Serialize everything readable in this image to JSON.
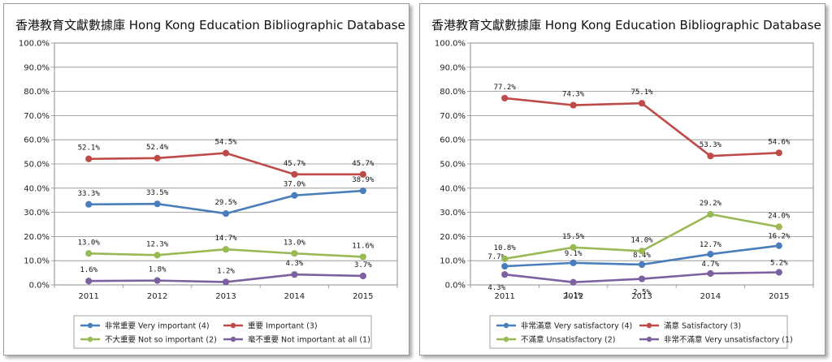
{
  "chart_data": [
    {
      "type": "line",
      "title": "香港教育文獻數據庫  Hong Kong Education Bibliographic Database",
      "x": [
        "2011",
        "2012",
        "2013",
        "2014",
        "2015"
      ],
      "ylim": [
        0,
        100
      ],
      "yticks": [
        "0.0%",
        "10.0%",
        "20.0%",
        "30.0%",
        "40.0%",
        "50.0%",
        "60.0%",
        "70.0%",
        "80.0%",
        "90.0%",
        "100.0%"
      ],
      "grid": true,
      "legend_position": "bottom",
      "series": [
        {
          "name": "非常重要 Very important (4)",
          "color": "#4a7ebb",
          "values": [
            33.3,
            33.5,
            29.5,
            37.0,
            38.9
          ],
          "labels": [
            "33.3%",
            "33.5%",
            "29.5%",
            "37.0%",
            "38.9%"
          ]
        },
        {
          "name": "重要 Important (3)",
          "color": "#be4b48",
          "values": [
            52.1,
            52.4,
            54.5,
            45.7,
            45.7
          ],
          "labels": [
            "52.1%",
            "52.4%",
            "54.5%",
            "45.7%",
            "45.7%"
          ]
        },
        {
          "name": "不大重要 Not so important (2)",
          "color": "#98b954",
          "values": [
            13.0,
            12.3,
            14.7,
            13.0,
            11.6
          ],
          "labels": [
            "13.0%",
            "12.3%",
            "14.7%",
            "13.0%",
            "11.6%"
          ]
        },
        {
          "name": "毫不重要 Not important at all (1)",
          "color": "#7d60a0",
          "values": [
            1.6,
            1.8,
            1.2,
            4.3,
            3.7
          ],
          "labels": [
            "1.6%",
            "1.8%",
            "1.2%",
            "4.3%",
            "3.7%"
          ]
        }
      ]
    },
    {
      "type": "line",
      "title": "香港教育文獻數據庫  Hong Kong Education Bibliographic Database",
      "x": [
        "2011",
        "2012",
        "2013",
        "2014",
        "2015"
      ],
      "ylim": [
        0,
        100
      ],
      "yticks": [
        "0.0%",
        "10.0%",
        "20.0%",
        "30.0%",
        "40.0%",
        "50.0%",
        "60.0%",
        "70.0%",
        "80.0%",
        "90.0%",
        "100.0%"
      ],
      "grid": true,
      "legend_position": "bottom",
      "series": [
        {
          "name": "非常滿意 Very satisfactory (4)",
          "color": "#4a7ebb",
          "values": [
            7.7,
            9.1,
            8.4,
            12.7,
            16.2
          ],
          "labels": [
            "7.7%",
            "9.1%",
            "8.4%",
            "12.7%",
            "16.2%"
          ]
        },
        {
          "name": "滿意 Satisfactory (3)",
          "color": "#be4b48",
          "values": [
            77.2,
            74.3,
            75.1,
            53.3,
            54.6
          ],
          "labels": [
            "77.2%",
            "74.3%",
            "75.1%",
            "53.3%",
            "54.6%"
          ]
        },
        {
          "name": "不滿意 Unsatisfactory (2)",
          "color": "#98b954",
          "values": [
            10.8,
            15.5,
            14.0,
            29.2,
            24.0
          ],
          "labels": [
            "10.8%",
            "15.5%",
            "14.0%",
            "29.2%",
            "24.0%"
          ]
        },
        {
          "name": "非常不滿意 Very unsatisfactory (1)",
          "color": "#7d60a0",
          "values": [
            4.3,
            1.1,
            2.5,
            4.7,
            5.2
          ],
          "labels": [
            "4.3%",
            "1.1%",
            "2.5%",
            "4.7%",
            "5.2%"
          ]
        }
      ]
    }
  ]
}
